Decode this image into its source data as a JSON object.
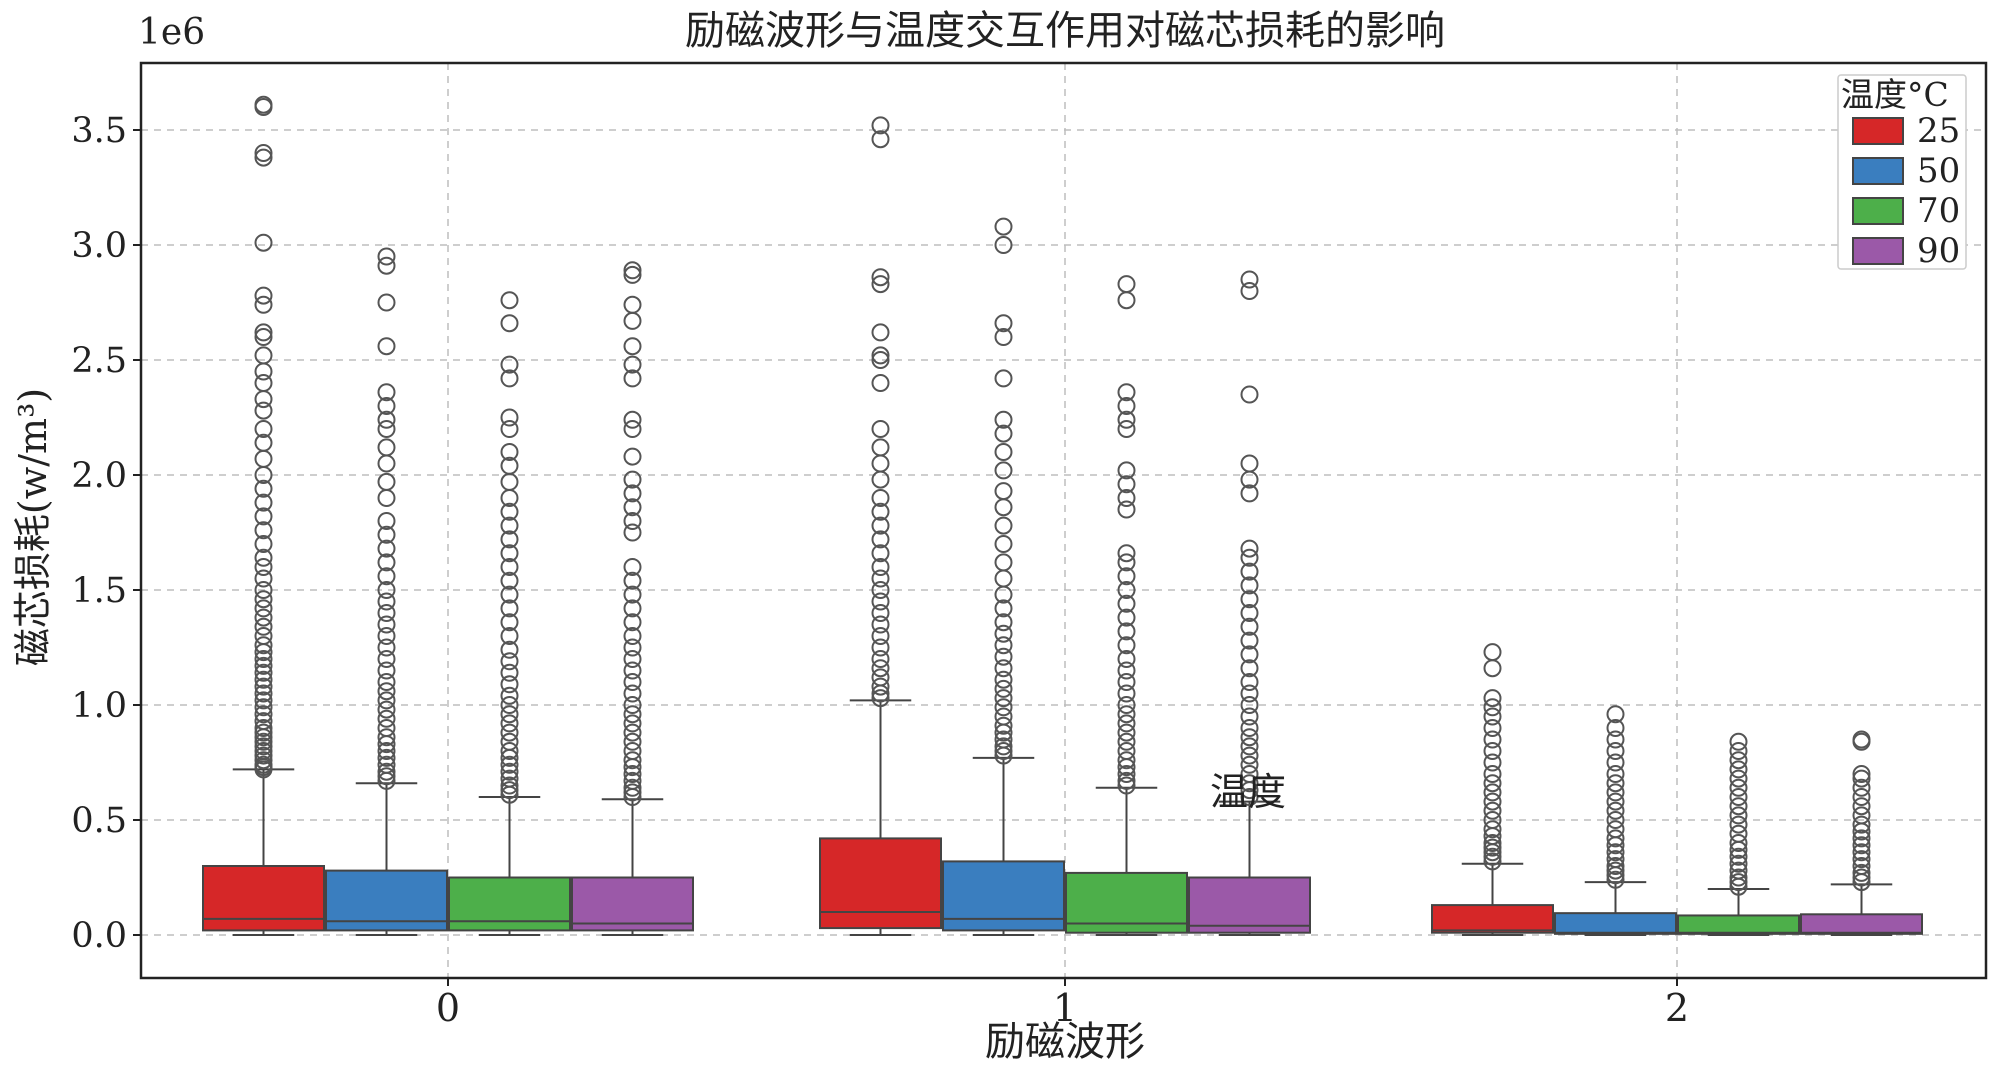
{
  "chart_data": {
    "type": "box",
    "title": "励磁波形与温度交互作用对磁芯损耗的影响",
    "xlabel": "励磁波形",
    "ylabel": "磁芯损耗(w/m³)",
    "y_multiplier_label": "1e6",
    "categories": [
      "0",
      "1",
      "2"
    ],
    "ylim": [
      -0.18,
      3.8
    ],
    "y_ticks": [
      "0.0",
      "0.5",
      "1.0",
      "1.5",
      "2.0",
      "2.5",
      "3.0",
      "3.5"
    ],
    "grid": true,
    "legend_position": "top-right",
    "legend_title": "温度°C",
    "stray_annotation": "温度",
    "series": [
      {
        "name": "25",
        "color": "#d62728",
        "boxes": [
          {
            "category": "0",
            "min": 0.0,
            "q1": 0.02,
            "median": 0.07,
            "q3": 0.3,
            "whisker_high": 0.72,
            "outliers": [
              0.72,
              0.73,
              0.74,
              0.76,
              0.78,
              0.8,
              0.82,
              0.84,
              0.86,
              0.88,
              0.9,
              0.93,
              0.96,
              0.99,
              1.02,
              1.05,
              1.08,
              1.11,
              1.14,
              1.17,
              1.2,
              1.23,
              1.26,
              1.3,
              1.34,
              1.38,
              1.42,
              1.46,
              1.5,
              1.55,
              1.6,
              1.64,
              1.7,
              1.76,
              1.82,
              1.88,
              1.94,
              2.0,
              2.07,
              2.14,
              2.2,
              2.28,
              2.33,
              2.4,
              2.45,
              2.52,
              2.6,
              2.62,
              2.74,
              2.78,
              3.01,
              3.38,
              3.4,
              3.6,
              3.61
            ]
          },
          {
            "category": "1",
            "min": 0.0,
            "q1": 0.03,
            "median": 0.1,
            "q3": 0.42,
            "whisker_high": 1.02,
            "outliers": [
              1.03,
              1.05,
              1.08,
              1.12,
              1.16,
              1.2,
              1.25,
              1.3,
              1.35,
              1.4,
              1.45,
              1.5,
              1.55,
              1.6,
              1.66,
              1.72,
              1.78,
              1.84,
              1.9,
              1.98,
              2.05,
              2.12,
              2.2,
              2.4,
              2.5,
              2.52,
              2.62,
              2.83,
              2.86,
              3.46,
              3.52
            ]
          },
          {
            "category": "2",
            "min": 0.0,
            "q1": 0.01,
            "median": 0.02,
            "q3": 0.13,
            "whisker_high": 0.31,
            "outliers": [
              0.32,
              0.34,
              0.36,
              0.38,
              0.4,
              0.43,
              0.46,
              0.5,
              0.54,
              0.58,
              0.62,
              0.66,
              0.7,
              0.75,
              0.8,
              0.85,
              0.9,
              0.95,
              0.99,
              1.03,
              1.16,
              1.23
            ]
          }
        ]
      },
      {
        "name": "50",
        "color": "#3a7ebf",
        "boxes": [
          {
            "category": "0",
            "min": 0.0,
            "q1": 0.02,
            "median": 0.06,
            "q3": 0.28,
            "whisker_high": 0.66,
            "outliers": [
              0.67,
              0.69,
              0.71,
              0.74,
              0.77,
              0.8,
              0.83,
              0.86,
              0.9,
              0.94,
              0.98,
              1.02,
              1.06,
              1.1,
              1.15,
              1.2,
              1.25,
              1.3,
              1.35,
              1.4,
              1.45,
              1.5,
              1.56,
              1.62,
              1.68,
              1.74,
              1.8,
              1.9,
              1.97,
              2.05,
              2.12,
              2.2,
              2.24,
              2.3,
              2.36,
              2.56,
              2.75,
              2.91,
              2.95
            ]
          },
          {
            "category": "1",
            "min": 0.0,
            "q1": 0.02,
            "median": 0.07,
            "q3": 0.32,
            "whisker_high": 0.77,
            "outliers": [
              0.78,
              0.8,
              0.82,
              0.85,
              0.88,
              0.91,
              0.95,
              0.99,
              1.03,
              1.07,
              1.11,
              1.16,
              1.21,
              1.26,
              1.31,
              1.36,
              1.42,
              1.48,
              1.55,
              1.62,
              1.7,
              1.78,
              1.86,
              1.93,
              2.02,
              2.1,
              2.18,
              2.24,
              2.42,
              2.6,
              2.66,
              3.0,
              3.08
            ]
          },
          {
            "category": "2",
            "min": 0.0,
            "q1": 0.005,
            "median": 0.01,
            "q3": 0.095,
            "whisker_high": 0.23,
            "outliers": [
              0.24,
              0.26,
              0.28,
              0.3,
              0.33,
              0.36,
              0.39,
              0.42,
              0.46,
              0.5,
              0.54,
              0.58,
              0.62,
              0.66,
              0.7,
              0.75,
              0.8,
              0.85,
              0.9,
              0.96
            ]
          }
        ]
      },
      {
        "name": "70",
        "color": "#4daf4a",
        "boxes": [
          {
            "category": "0",
            "min": 0.0,
            "q1": 0.02,
            "median": 0.06,
            "q3": 0.25,
            "whisker_high": 0.6,
            "outliers": [
              0.61,
              0.63,
              0.65,
              0.68,
              0.71,
              0.74,
              0.77,
              0.8,
              0.84,
              0.88,
              0.92,
              0.96,
              1.0,
              1.04,
              1.09,
              1.14,
              1.19,
              1.24,
              1.3,
              1.36,
              1.42,
              1.48,
              1.54,
              1.6,
              1.66,
              1.72,
              1.78,
              1.84,
              1.9,
              1.97,
              2.04,
              2.1,
              2.2,
              2.25,
              2.42,
              2.48,
              2.66,
              2.76
            ]
          },
          {
            "category": "1",
            "min": 0.0,
            "q1": 0.01,
            "median": 0.05,
            "q3": 0.27,
            "whisker_high": 0.64,
            "outliers": [
              0.65,
              0.67,
              0.7,
              0.73,
              0.76,
              0.8,
              0.84,
              0.88,
              0.92,
              0.96,
              1.0,
              1.05,
              1.1,
              1.15,
              1.2,
              1.26,
              1.32,
              1.38,
              1.44,
              1.5,
              1.56,
              1.62,
              1.66,
              1.85,
              1.9,
              1.96,
              2.02,
              2.2,
              2.24,
              2.3,
              2.36,
              2.76,
              2.83
            ]
          },
          {
            "category": "2",
            "min": 0.0,
            "q1": 0.005,
            "median": 0.01,
            "q3": 0.085,
            "whisker_high": 0.2,
            "outliers": [
              0.21,
              0.23,
              0.25,
              0.28,
              0.31,
              0.34,
              0.37,
              0.4,
              0.44,
              0.48,
              0.52,
              0.56,
              0.6,
              0.64,
              0.68,
              0.72,
              0.76,
              0.8,
              0.84
            ]
          }
        ]
      },
      {
        "name": "90",
        "color": "#9b59a8",
        "boxes": [
          {
            "category": "0",
            "min": 0.0,
            "q1": 0.02,
            "median": 0.05,
            "q3": 0.25,
            "whisker_high": 0.59,
            "outliers": [
              0.6,
              0.62,
              0.64,
              0.67,
              0.7,
              0.73,
              0.76,
              0.8,
              0.84,
              0.88,
              0.92,
              0.96,
              1.0,
              1.05,
              1.1,
              1.15,
              1.2,
              1.25,
              1.3,
              1.36,
              1.42,
              1.48,
              1.54,
              1.6,
              1.75,
              1.8,
              1.86,
              1.92,
              1.98,
              2.08,
              2.2,
              2.24,
              2.42,
              2.48,
              2.56,
              2.67,
              2.74,
              2.87,
              2.89
            ]
          },
          {
            "category": "1",
            "min": 0.0,
            "q1": 0.01,
            "median": 0.04,
            "q3": 0.25,
            "whisker_high": 0.58,
            "outliers": [
              0.6,
              0.63,
              0.66,
              0.7,
              0.74,
              0.78,
              0.82,
              0.86,
              0.9,
              0.95,
              1.0,
              1.05,
              1.1,
              1.16,
              1.22,
              1.28,
              1.34,
              1.4,
              1.46,
              1.52,
              1.58,
              1.64,
              1.68,
              1.92,
              1.98,
              2.05,
              2.35,
              2.8,
              2.85
            ]
          },
          {
            "category": "2",
            "min": 0.0,
            "q1": 0.005,
            "median": 0.01,
            "q3": 0.09,
            "whisker_high": 0.22,
            "outliers": [
              0.23,
              0.25,
              0.27,
              0.3,
              0.33,
              0.36,
              0.39,
              0.42,
              0.45,
              0.48,
              0.52,
              0.56,
              0.6,
              0.64,
              0.68,
              0.7,
              0.84,
              0.85
            ]
          }
        ]
      }
    ]
  }
}
